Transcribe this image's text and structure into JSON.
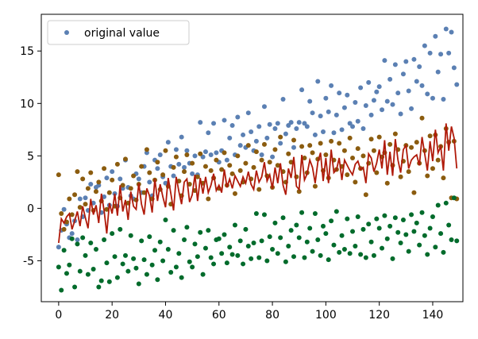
{
  "chart_data": {
    "type": "scatter",
    "x": [
      0,
      1,
      2,
      3,
      4,
      5,
      6,
      7,
      8,
      9,
      10,
      11,
      12,
      13,
      14,
      15,
      16,
      17,
      18,
      19,
      20,
      21,
      22,
      23,
      24,
      25,
      26,
      27,
      28,
      29,
      30,
      31,
      32,
      33,
      34,
      35,
      36,
      37,
      38,
      39,
      40,
      41,
      42,
      43,
      44,
      45,
      46,
      47,
      48,
      49,
      50,
      51,
      52,
      53,
      54,
      55,
      56,
      57,
      58,
      59,
      60,
      61,
      62,
      63,
      64,
      65,
      66,
      67,
      68,
      69,
      70,
      71,
      72,
      73,
      74,
      75,
      76,
      77,
      78,
      79,
      80,
      81,
      82,
      83,
      84,
      85,
      86,
      87,
      88,
      89,
      90,
      91,
      92,
      93,
      94,
      95,
      96,
      97,
      98,
      99,
      100,
      101,
      102,
      103,
      104,
      105,
      106,
      107,
      108,
      109,
      110,
      111,
      112,
      113,
      114,
      115,
      116,
      117,
      118,
      119,
      120,
      121,
      122,
      123,
      124,
      125,
      126,
      127,
      128,
      129,
      130,
      131,
      132,
      133,
      134,
      135,
      136,
      137,
      138,
      139,
      140,
      141,
      142,
      143,
      144,
      145,
      146,
      147,
      148,
      149
    ],
    "series": [
      {
        "name": "original value",
        "color": "#5b80b3",
        "values": [
          -3.7,
          -2.1,
          -0.1,
          -1.5,
          -2.8,
          -2.4,
          -1.2,
          -3.0,
          0.9,
          -0.8,
          1.0,
          -0.2,
          2.3,
          0.5,
          2.0,
          2.2,
          -0.4,
          1.1,
          2.9,
          0.3,
          3.5,
          1.4,
          0.2,
          2.8,
          1.9,
          4.6,
          2.0,
          1.2,
          0.9,
          3.3,
          2.8,
          1.5,
          4.0,
          5.3,
          2.5,
          1.2,
          4.6,
          3.8,
          5.1,
          3.0,
          2.4,
          6.3,
          4.0,
          3.1,
          5.6,
          4.2,
          6.8,
          3.9,
          5.5,
          4.3,
          3.3,
          5.0,
          3.2,
          8.2,
          4.9,
          5.4,
          7.2,
          5.1,
          8.1,
          5.3,
          4.4,
          5.5,
          8.4,
          4.6,
          6.7,
          7.9,
          5.1,
          8.7,
          6.0,
          7.0,
          5.8,
          9.1,
          7.3,
          5.5,
          6.4,
          7.8,
          5.1,
          9.7,
          6.7,
          8.0,
          4.9,
          7.6,
          8.1,
          6.2,
          10.4,
          7.1,
          7.9,
          8.2,
          5.8,
          7.6,
          8.2,
          11.3,
          8.1,
          7.8,
          10.2,
          9.1,
          7.0,
          12.1,
          8.8,
          7.3,
          10.5,
          9.2,
          11.7,
          7.2,
          8.9,
          11.0,
          7.5,
          9.6,
          10.8,
          8.1,
          7.8,
          10.1,
          8.3,
          11.5,
          7.6,
          9.8,
          12.0,
          8.9,
          10.3,
          11.1,
          11.6,
          9.4,
          14.1,
          10.2,
          12.3,
          9.9,
          13.7,
          11.0,
          9.0,
          12.8,
          14.0,
          11.2,
          9.5,
          14.2,
          12.1,
          13.5,
          11.7,
          15.5,
          10.9,
          14.8,
          10.5,
          16.4,
          13.0,
          14.7,
          10.4,
          17.1,
          14.8,
          16.8,
          13.4,
          11.8
        ]
      },
      {
        "color": "#8b5c0f",
        "values": [
          3.2,
          -0.5,
          -2.0,
          -1.3,
          0.9,
          -0.6,
          1.3,
          3.5,
          0.1,
          2.8,
          0.4,
          1.9,
          3.4,
          -0.2,
          1.6,
          2.5,
          0.7,
          3.8,
          -0.1,
          1.5,
          2.7,
          0.2,
          4.2,
          1.0,
          2.2,
          4.7,
          0.5,
          1.9,
          3.1,
          0.8,
          2.3,
          4.0,
          1.5,
          5.6,
          3.4,
          0.9,
          2.7,
          4.4,
          1.8,
          3.2,
          5.5,
          2.1,
          0.4,
          3.9,
          4.9,
          2.6,
          1.2,
          3.5,
          5.1,
          2.3,
          4.3,
          1.7,
          3.0,
          5.2,
          2.4,
          4.0,
          0.9,
          3.6,
          2.9,
          4.6,
          1.9,
          3.7,
          5.3,
          2.2,
          4.1,
          3.3,
          1.4,
          5.0,
          3.6,
          2.5,
          4.3,
          6.0,
          2.8,
          3.9,
          5.4,
          1.8,
          4.6,
          6.1,
          3.1,
          4.4,
          2.0,
          5.6,
          4.1,
          6.8,
          3.5,
          2.5,
          5.2,
          4.4,
          6.5,
          3.0,
          1.6,
          5.9,
          4.8,
          3.4,
          6.0,
          5.3,
          2.1,
          4.7,
          6.2,
          3.6,
          5.1,
          2.9,
          6.4,
          4.6,
          3.7,
          6.2,
          4.0,
          5.5,
          3.2,
          6.7,
          4.8,
          2.5,
          5.7,
          3.8,
          5.0,
          1.3,
          4.3,
          6.6,
          5.5,
          3.4,
          6.8,
          4.9,
          5.3,
          2.4,
          6.1,
          4.1,
          7.1,
          5.6,
          3.0,
          4.5,
          6.0,
          3.5,
          5.8,
          1.5,
          6.3,
          4.3,
          8.6,
          5.5,
          3.1,
          6.9,
          3.8,
          7.0,
          4.6,
          5.9,
          2.9,
          7.6,
          6.3,
          1.0,
          6.4,
          0.9
        ]
      },
      {
        "color": "#006b2b",
        "values": [
          -5.6,
          -7.8,
          -4.0,
          -6.2,
          -5.4,
          -2.9,
          -7.5,
          -3.4,
          -6.0,
          -2.8,
          -4.5,
          -6.3,
          -3.3,
          -5.8,
          -3.9,
          -7.5,
          -6.9,
          -3.0,
          -5.2,
          -7.0,
          -2.4,
          -4.6,
          -6.6,
          -2.0,
          -5.3,
          -4.5,
          -6.0,
          -2.6,
          -4.8,
          -5.7,
          -7.2,
          -3.1,
          -4.9,
          -6.3,
          -2.7,
          -5.4,
          -4.0,
          -6.8,
          -3.2,
          -5.0,
          -1.1,
          -3.9,
          -6.1,
          -2.1,
          -5.6,
          -4.3,
          -6.6,
          -3.0,
          -1.8,
          -5.1,
          -5.6,
          -3.4,
          -4.6,
          -2.3,
          -6.3,
          -3.8,
          -2.1,
          -4.7,
          -5.3,
          -3.0,
          -2.9,
          -4.3,
          -2.5,
          -5.2,
          -3.7,
          -4.4,
          -1.6,
          -4.5,
          -3.1,
          -5.3,
          -2.0,
          -3.6,
          -4.8,
          -3.3,
          -0.5,
          -4.7,
          -3.1,
          -0.6,
          -5.0,
          -2.7,
          -3.9,
          -1.4,
          -4.3,
          -2.8,
          -0.9,
          -5.1,
          -3.6,
          -2.1,
          -4.6,
          -1.6,
          -2.8,
          -0.4,
          -4.7,
          -3.2,
          -1.9,
          -4.1,
          -0.5,
          -3.0,
          -4.5,
          -1.7,
          -2.4,
          -4.9,
          -1.2,
          -3.5,
          -0.3,
          -4.2,
          -2.6,
          -3.9,
          -1.0,
          -4.3,
          -2.2,
          -3.6,
          -0.8,
          -4.4,
          -2.0,
          -4.7,
          -1.5,
          -3.2,
          -4.5,
          -1.0,
          -1.9,
          -3.8,
          -0.7,
          -2.9,
          -1.7,
          -4.8,
          -0.9,
          -2.3,
          -3.3,
          -1.1,
          -2.5,
          -4.1,
          -0.6,
          -2.2,
          -1.4,
          -3.5,
          -0.4,
          -2.6,
          -4.4,
          -1.9,
          -0.8,
          -3.7,
          0.3,
          -2.4,
          -4.2,
          0.5,
          -1.6,
          -3.0,
          1.0,
          -3.1
        ]
      },
      {
        "color": "#b01a0a",
        "type": "line",
        "values": [
          -3.3,
          -1.0,
          -1.4,
          -0.8,
          -0.5,
          -2.0,
          -1.2,
          -0.3,
          -1.7,
          0.2,
          -0.9,
          -1.9,
          0.9,
          -0.6,
          0.3,
          -1.4,
          1.4,
          -0.2,
          -2.4,
          0.5,
          -0.5,
          1.4,
          -0.7,
          2.2,
          -0.3,
          0.8,
          -1.1,
          1.6,
          0.2,
          -0.1,
          2.4,
          0.4,
          -0.6,
          1.9,
          1.2,
          -0.4,
          2.8,
          0.7,
          2.3,
          1.1,
          0.1,
          2.9,
          1.4,
          -0.2,
          3.0,
          1.6,
          0.4,
          2.5,
          2.8,
          0.6,
          1.3,
          3.2,
          0.7,
          2.9,
          1.4,
          3.0,
          1.5,
          2.2,
          3.3,
          1.7,
          2.2,
          1.5,
          3.7,
          2.0,
          2.8,
          1.9,
          3.1,
          2.6,
          2.1,
          3.0,
          2.4,
          3.5,
          2.3,
          1.8,
          3.6,
          2.5,
          3.0,
          4.4,
          2.6,
          3.2,
          1.9,
          3.9,
          2.4,
          4.3,
          2.2,
          1.3,
          3.8,
          2.9,
          4.9,
          2.1,
          1.8,
          5.1,
          2.7,
          3.3,
          4.6,
          3.9,
          2.4,
          4.4,
          5.3,
          2.6,
          4.8,
          2.4,
          5.6,
          3.4,
          3.7,
          4.8,
          2.7,
          4.6,
          4.1,
          3.6,
          3.2,
          4.2,
          4.5,
          3.7,
          3.9,
          2.4,
          5.2,
          4.8,
          3.5,
          4.3,
          5.6,
          3.8,
          6.5,
          3.2,
          5.4,
          3.1,
          6.6,
          4.6,
          3.4,
          5.6,
          6.0,
          3.8,
          4.6,
          4.9,
          5.1,
          4.1,
          6.8,
          5.2,
          3.6,
          6.4,
          4.5,
          7.5,
          5.3,
          5.9,
          3.6,
          8.1,
          5.5,
          7.8,
          6.7,
          3.8
        ]
      }
    ],
    "xlim": [
      -6.5,
      151.3
    ],
    "xticks": [
      0,
      20,
      40,
      60,
      80,
      100,
      120,
      140
    ],
    "ylim": [
      -8.9,
      18.5
    ],
    "yticks": [
      -5,
      0,
      5,
      10,
      15
    ],
    "legend": "upper left"
  }
}
